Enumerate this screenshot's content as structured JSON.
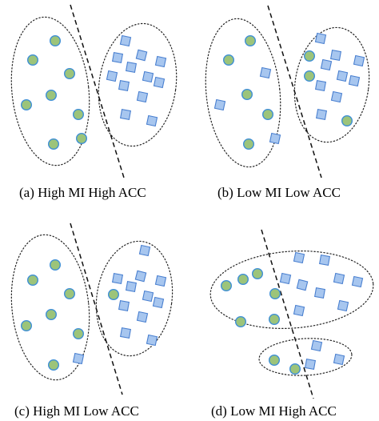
{
  "colors": {
    "circle_fill": "#9cc47a",
    "circle_stroke": "#3e8fd6",
    "square_fill": "#a7c6ef",
    "square_stroke": "#4a80d0"
  },
  "panels": [
    {
      "caption": "(a) High MI High ACC"
    },
    {
      "caption": "(b) Low MI Low ACC"
    },
    {
      "caption": "(c) High MI Low ACC"
    },
    {
      "caption": "(d) Low MI High ACC"
    }
  ]
}
